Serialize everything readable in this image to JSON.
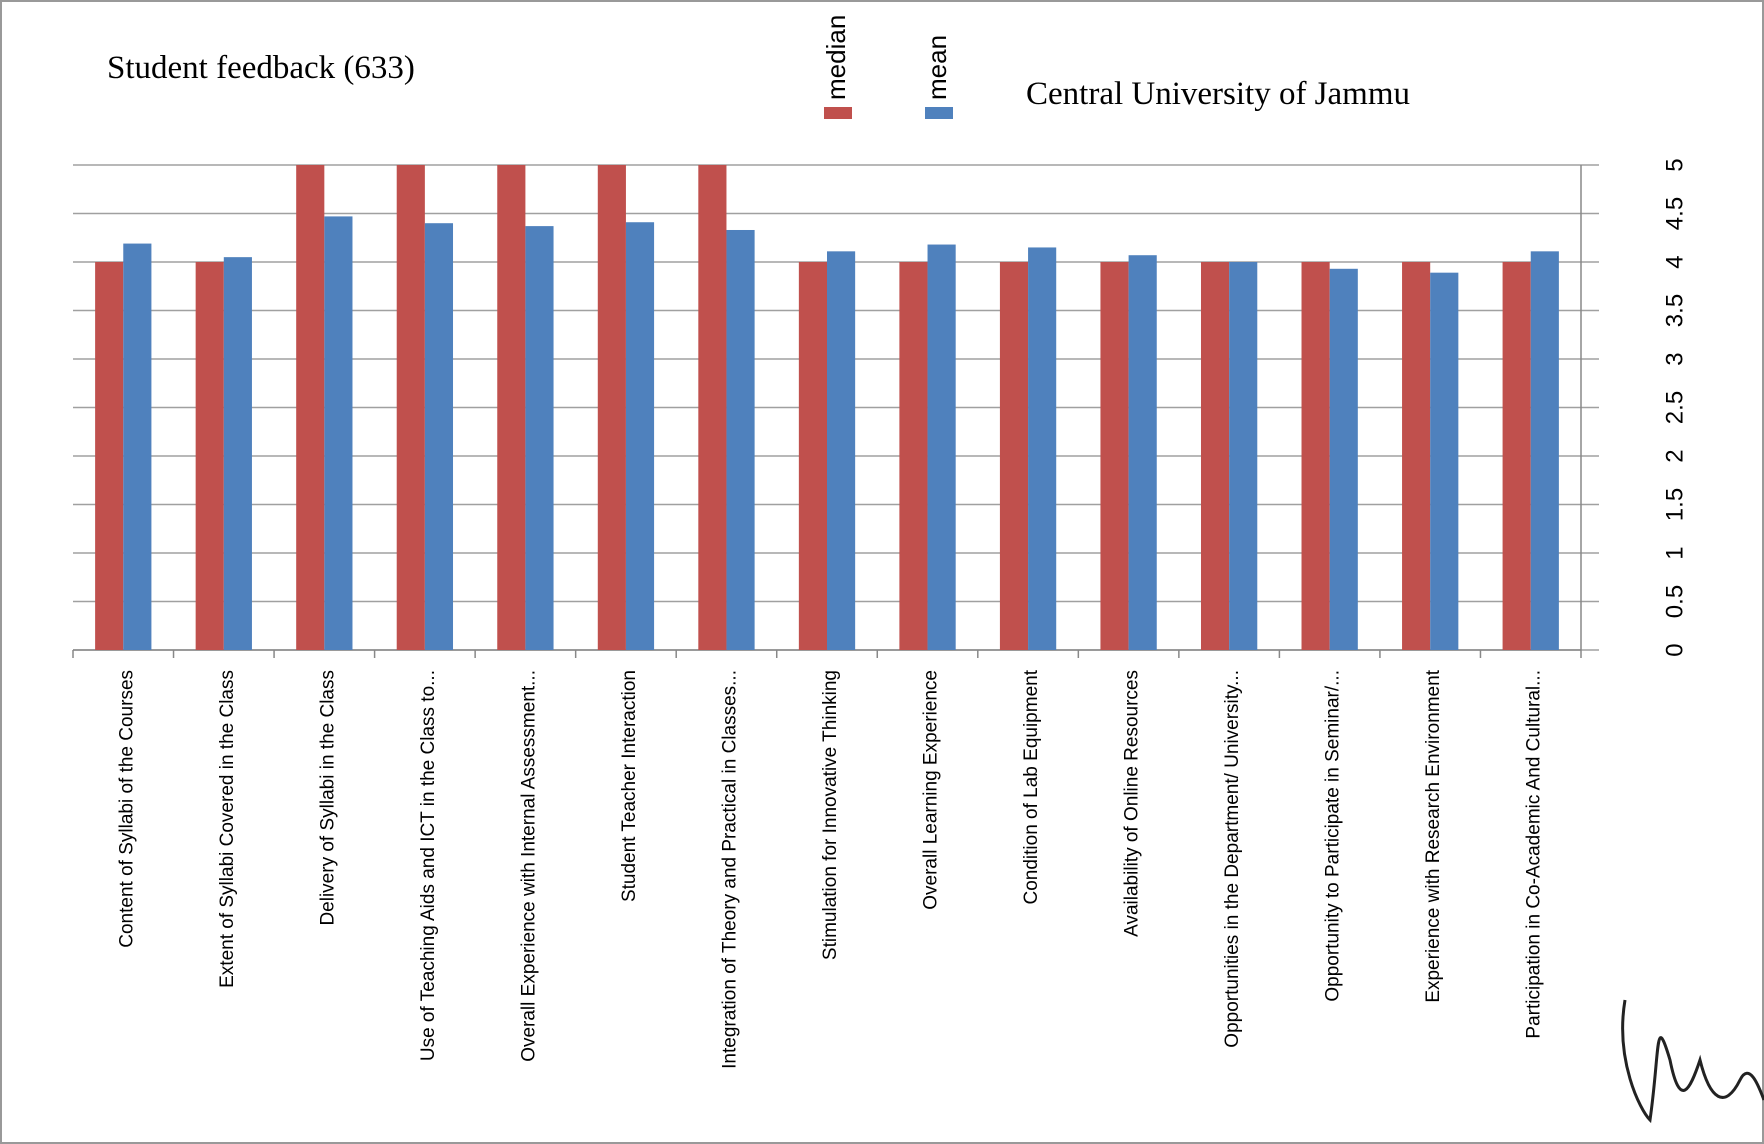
{
  "chart_data": {
    "type": "bar",
    "title": "Student feedback (633)",
    "annotation": "Central University of Jammu",
    "categories": [
      "Content of Syllabi of the Courses",
      "Extent of Syllabi Covered in the Class",
      "Delivery of Syllabi in the Class",
      "Use of Teaching Aids and ICT in the Class to...",
      "Overall Experience with Internal Assessment...",
      "Student Teacher Interaction",
      "Integration of Theory and Practical in Classes...",
      "Stimulation for Innovative Thinking",
      "Overall Learning Experience",
      "Condition of Lab Equipment",
      "Availability of Online Resources",
      "Opportunities in the Department/ University...",
      "Opportunity to Participate in Seminar/...",
      "Experience with Research Environment",
      "Participation in Co-Academic And Cultural..."
    ],
    "series": [
      {
        "name": "median",
        "color": "#c0504d",
        "values": [
          4,
          4,
          5,
          5,
          5,
          5,
          5,
          4,
          4,
          4,
          4,
          4,
          4,
          4,
          4
        ]
      },
      {
        "name": "mean",
        "color": "#4f81bd",
        "values": [
          4.19,
          4.05,
          4.47,
          4.4,
          4.37,
          4.41,
          4.33,
          4.11,
          4.18,
          4.15,
          4.07,
          4.0,
          3.93,
          3.89,
          4.11
        ]
      }
    ],
    "ylim": [
      0,
      5
    ],
    "yticks": [
      0,
      0.5,
      1,
      1.5,
      2,
      2.5,
      3,
      3.5,
      4,
      4.5,
      5
    ],
    "grid": true,
    "legend": "top"
  }
}
